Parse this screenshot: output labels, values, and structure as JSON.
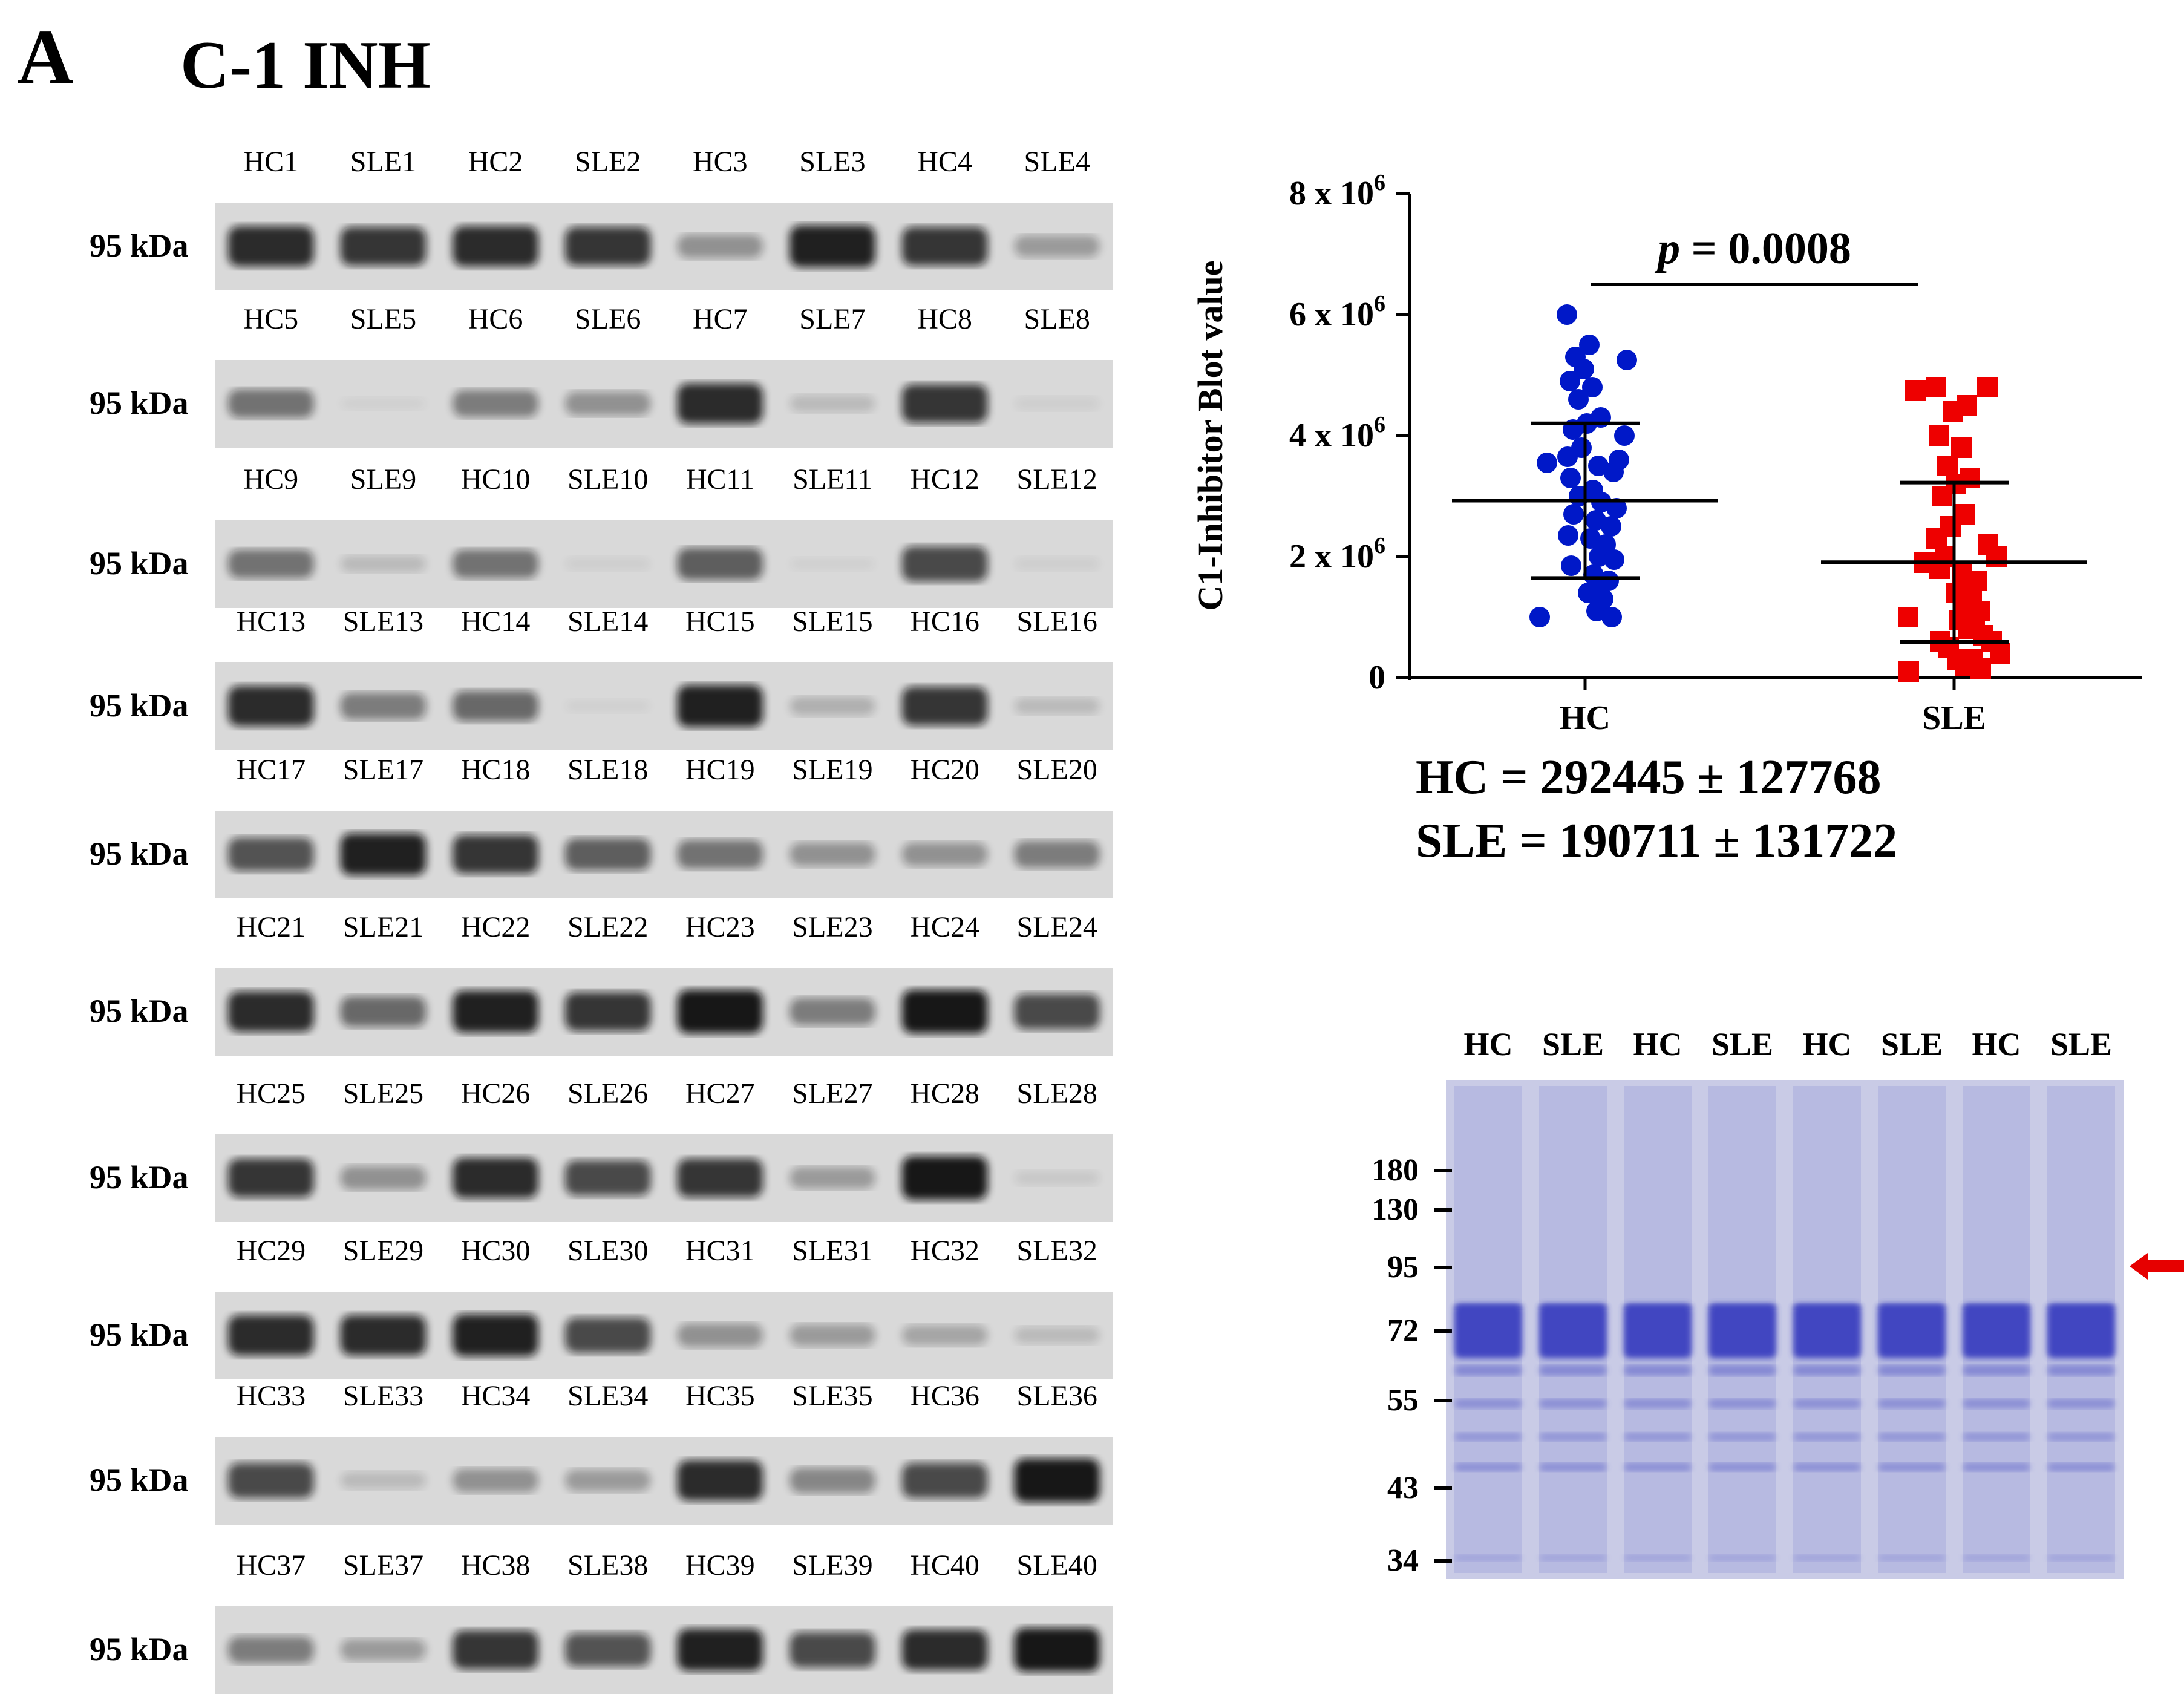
{
  "figure": {
    "panel_letter": "A",
    "title": "C-1 INH"
  },
  "blots": {
    "size_label": "95 kDa",
    "rows": [
      {
        "lanes": [
          "HC1",
          "SLE1",
          "HC2",
          "SLE2",
          "HC3",
          "SLE3",
          "HC4",
          "SLE4"
        ],
        "intensity": [
          0.85,
          0.8,
          0.85,
          0.8,
          0.35,
          0.9,
          0.8,
          0.3
        ]
      },
      {
        "lanes": [
          "HC5",
          "SLE5",
          "HC6",
          "SLE6",
          "HC7",
          "SLE7",
          "HC8",
          "SLE8"
        ],
        "intensity": [
          0.5,
          0.02,
          0.45,
          0.35,
          0.85,
          0.15,
          0.8,
          0.05
        ]
      },
      {
        "lanes": [
          "HC9",
          "SLE9",
          "HC10",
          "SLE10",
          "HC11",
          "SLE11",
          "HC12",
          "SLE12"
        ],
        "intensity": [
          0.5,
          0.15,
          0.5,
          0.05,
          0.6,
          0.03,
          0.7,
          0.05
        ]
      },
      {
        "lanes": [
          "HC13",
          "SLE13",
          "HC14",
          "SLE14",
          "HC15",
          "SLE15",
          "HC16",
          "SLE16"
        ],
        "intensity": [
          0.85,
          0.45,
          0.55,
          0.03,
          0.9,
          0.2,
          0.8,
          0.15
        ]
      },
      {
        "lanes": [
          "HC17",
          "SLE17",
          "HC18",
          "SLE18",
          "HC19",
          "SLE19",
          "HC20",
          "SLE20"
        ],
        "intensity": [
          0.65,
          0.9,
          0.8,
          0.6,
          0.5,
          0.35,
          0.35,
          0.45
        ]
      },
      {
        "lanes": [
          "HC21",
          "SLE21",
          "HC22",
          "SLE22",
          "HC23",
          "SLE23",
          "HC24",
          "SLE24"
        ],
        "intensity": [
          0.85,
          0.55,
          0.9,
          0.8,
          0.95,
          0.45,
          0.95,
          0.7
        ]
      },
      {
        "lanes": [
          "HC25",
          "SLE25",
          "HC26",
          "SLE26",
          "HC27",
          "SLE27",
          "HC28",
          "SLE28"
        ],
        "intensity": [
          0.8,
          0.35,
          0.85,
          0.7,
          0.8,
          0.3,
          0.95,
          0.08
        ]
      },
      {
        "lanes": [
          "HC29",
          "SLE29",
          "HC30",
          "SLE30",
          "HC31",
          "SLE31",
          "HC32",
          "SLE32"
        ],
        "intensity": [
          0.85,
          0.85,
          0.9,
          0.7,
          0.35,
          0.3,
          0.25,
          0.15
        ]
      },
      {
        "lanes": [
          "HC33",
          "SLE33",
          "HC34",
          "SLE34",
          "HC35",
          "SLE35",
          "HC36",
          "SLE36"
        ],
        "intensity": [
          0.7,
          0.15,
          0.35,
          0.3,
          0.85,
          0.4,
          0.7,
          0.95
        ]
      },
      {
        "lanes": [
          "HC37",
          "SLE37",
          "HC38",
          "SLE38",
          "HC39",
          "SLE39",
          "HC40",
          "SLE40"
        ],
        "intensity": [
          0.45,
          0.3,
          0.8,
          0.65,
          0.9,
          0.7,
          0.85,
          0.95
        ]
      }
    ]
  },
  "chart_data": {
    "type": "scatter",
    "ylabel": "C1-Inhibitor Blot value",
    "yticks": [
      "0",
      "2 x 10",
      "4 x 10",
      "6 x 10",
      "8 x 10"
    ],
    "ytick_exponent": "6",
    "ylim": [
      0,
      8000000
    ],
    "categories": [
      "HC",
      "SLE"
    ],
    "annotation": {
      "p_label": "p",
      "p_value": "= 0.0008"
    },
    "series": [
      {
        "name": "HC",
        "color": "#0018c8",
        "marker": "circle",
        "mean": 2924450,
        "sd": 1277680,
        "values": [
          6000000,
          5500000,
          5300000,
          5250000,
          5100000,
          4900000,
          4800000,
          4600000,
          4300000,
          4200000,
          4100000,
          4000000,
          3800000,
          3650000,
          3600000,
          3550000,
          3500000,
          3400000,
          3300000,
          3100000,
          3000000,
          2900000,
          2800000,
          2700000,
          2600000,
          2500000,
          2350000,
          2300000,
          2200000,
          2000000,
          1950000,
          1850000,
          1700000,
          1600000,
          1550000,
          1400000,
          1300000,
          1100000,
          1000000,
          1000000
        ]
      },
      {
        "name": "SLE",
        "color": "#ee0000",
        "marker": "square",
        "mean": 1907110,
        "sd": 1317220,
        "values": [
          4800000,
          4800000,
          4750000,
          4500000,
          4400000,
          4000000,
          3800000,
          3500000,
          3300000,
          3200000,
          3000000,
          2700000,
          2500000,
          2300000,
          2200000,
          2000000,
          2000000,
          1900000,
          1800000,
          1700000,
          1600000,
          1500000,
          1400000,
          1300000,
          1100000,
          1100000,
          1000000,
          950000,
          900000,
          800000,
          700000,
          600000,
          600000,
          500000,
          400000,
          300000,
          300000,
          200000,
          150000,
          100000
        ]
      }
    ]
  },
  "stats": {
    "hc": "HC = 292445 ± 127768",
    "sle": "SLE = 190711 ± 131722"
  },
  "gel": {
    "lanes": [
      "HC",
      "SLE",
      "HC",
      "SLE",
      "HC",
      "SLE",
      "HC",
      "SLE"
    ],
    "markers": [
      "180",
      "130",
      "95",
      "72",
      "55",
      "43",
      "34"
    ],
    "arrow_color": "#e60000",
    "stain_color": "#3b3fc0"
  }
}
